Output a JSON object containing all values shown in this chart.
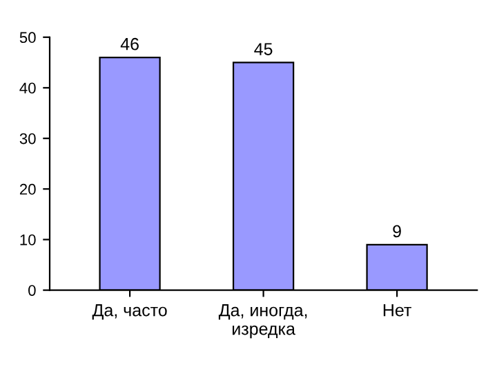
{
  "chart_data": {
    "type": "bar",
    "categories": [
      "Да, часто",
      "Да, иногда,\nизредка",
      "Нет"
    ],
    "values": [
      46,
      45,
      9
    ],
    "color": "#9999ff",
    "ylim": [
      0,
      50
    ],
    "yticks": [
      0,
      10,
      20,
      30,
      40,
      50
    ],
    "data_labels": true,
    "grid": false,
    "legend": false
  }
}
